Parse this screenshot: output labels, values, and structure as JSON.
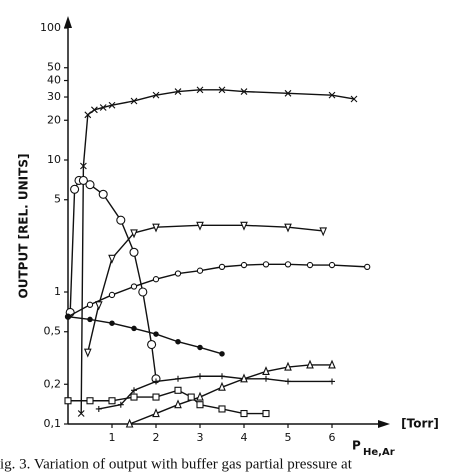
{
  "chart_data": {
    "type": "line",
    "log_y": true,
    "y_label": "OUTPUT [REL. UNITS]",
    "x_label": "P",
    "x_label_sub": "He,Ar",
    "x_unit": "[Torr]",
    "caption": "ig. 3. Variation of output with buffer gas partial pressure at",
    "xlim": [
      0,
      7
    ],
    "ylim": [
      0.1,
      100
    ],
    "xticks": [
      1,
      2,
      3,
      4,
      5,
      6
    ],
    "yticks": [
      {
        "value": 0.1,
        "label": "0,1"
      },
      {
        "value": 0.2,
        "label": "0,2"
      },
      {
        "value": 0.5,
        "label": "0,5"
      },
      1,
      5,
      10,
      20,
      30,
      40,
      50,
      100
    ],
    "series": [
      {
        "color": "#111111",
        "marker": "x",
        "x": [
          0.3,
          0.35,
          0.45,
          0.6,
          0.8,
          1.0,
          1.5,
          2.0,
          2.5,
          3.0,
          3.5,
          4.0,
          5.0,
          6.0,
          6.5
        ],
        "values": [
          0.12,
          9,
          22,
          24,
          25,
          26,
          28,
          31,
          33,
          34,
          34,
          33,
          32,
          31,
          29
        ]
      },
      {
        "color": "#111111",
        "marker": "circle-dot",
        "x": [
          0.05,
          0.15,
          0.25,
          0.35,
          0.5,
          0.8,
          1.2,
          1.5,
          1.7,
          1.9,
          2.0
        ],
        "values": [
          0.7,
          6,
          7,
          7,
          6.5,
          5.5,
          3.5,
          2,
          1,
          0.4,
          0.22
        ]
      },
      {
        "color": "#111111",
        "marker": "triangle-down",
        "x": [
          0.45,
          0.7,
          1.0,
          1.5,
          2.0,
          3.0,
          4.0,
          5.0,
          5.8
        ],
        "values": [
          0.35,
          0.8,
          1.8,
          2.8,
          3.1,
          3.2,
          3.2,
          3.1,
          2.9
        ]
      },
      {
        "color": "#111111",
        "marker": "circle",
        "x": [
          0,
          0.5,
          1,
          1.5,
          2,
          2.5,
          3,
          3.5,
          4,
          4.5,
          5,
          5.5,
          6,
          6.8
        ],
        "values": [
          0.65,
          0.8,
          0.95,
          1.1,
          1.25,
          1.38,
          1.45,
          1.55,
          1.6,
          1.62,
          1.62,
          1.6,
          1.6,
          1.55
        ]
      },
      {
        "color": "#111111",
        "marker": "dot",
        "x": [
          0,
          0.5,
          1,
          1.5,
          2,
          2.5,
          3,
          3.5
        ],
        "values": [
          0.65,
          0.62,
          0.58,
          0.53,
          0.48,
          0.42,
          0.38,
          0.34
        ]
      },
      {
        "color": "#111111",
        "marker": "plus",
        "x": [
          0.7,
          1.2,
          1.5,
          2,
          2.5,
          3,
          3.5,
          4,
          4.5,
          5,
          6
        ],
        "values": [
          0.13,
          0.14,
          0.18,
          0.21,
          0.22,
          0.23,
          0.23,
          0.22,
          0.22,
          0.21,
          0.21
        ]
      },
      {
        "color": "#111111",
        "marker": "triangle",
        "x": [
          1.4,
          2,
          2.5,
          3,
          3.5,
          4,
          4.5,
          5,
          5.5,
          6
        ],
        "values": [
          0.1,
          0.12,
          0.14,
          0.16,
          0.19,
          0.22,
          0.25,
          0.27,
          0.28,
          0.28
        ]
      },
      {
        "color": "#111111",
        "marker": "square",
        "x": [
          0,
          0.5,
          1,
          1.5,
          2,
          2.5,
          2.8,
          3.0,
          3.5,
          4,
          4.5
        ],
        "values": [
          0.15,
          0.15,
          0.15,
          0.16,
          0.16,
          0.18,
          0.16,
          0.14,
          0.13,
          0.12,
          0.12
        ]
      }
    ]
  }
}
